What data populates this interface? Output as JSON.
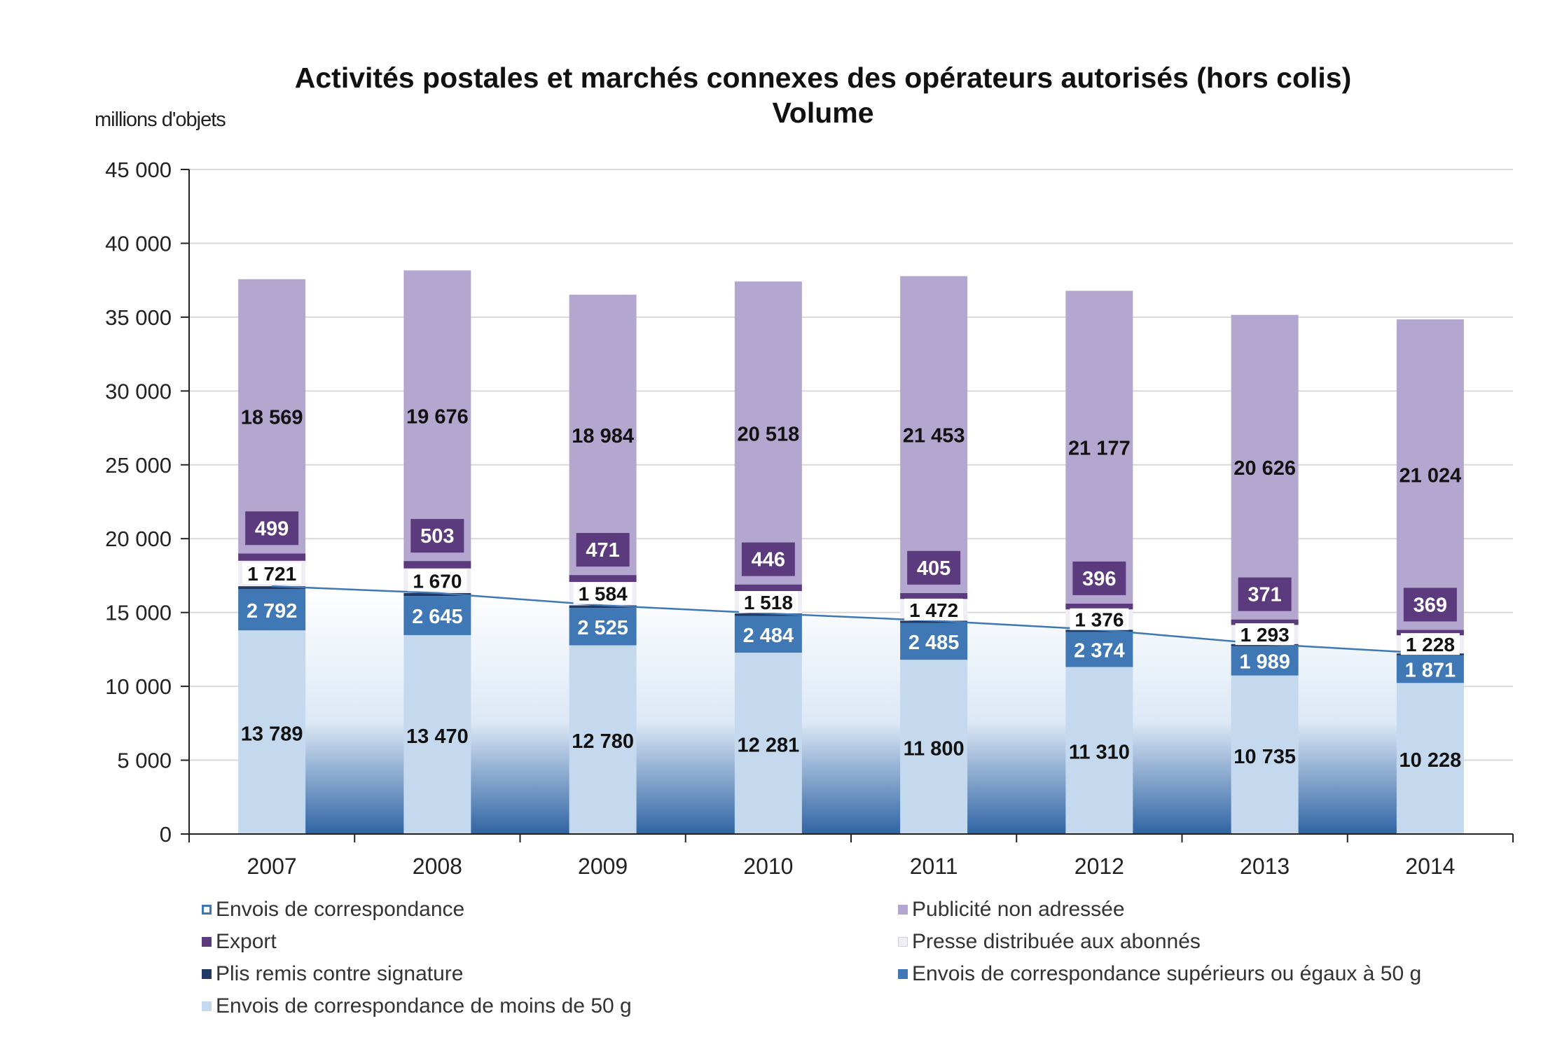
{
  "title": "Activités postales et marchés connexes des opérateurs autorisés (hors colis)",
  "subtitle": "Volume",
  "unit_label": "millions d'objets",
  "colors": {
    "lt50": "#c5d9ee",
    "gt50": "#3f78b5",
    "plis": "#1f3864",
    "presse": "#eeeef4",
    "export": "#5c3a7e",
    "pub": "#b3a7d0",
    "total_line": "#3f78b5",
    "grid": "#d9d9d9",
    "axis": "#222222"
  },
  "chart_data": {
    "type": "bar",
    "stacked": true,
    "title": "Activités postales et marchés connexes des opérateurs autorisés (hors colis)\nVolume",
    "ylabel": "millions d'objets",
    "ylim": [
      0,
      45000
    ],
    "yticks": [
      0,
      5000,
      10000,
      15000,
      20000,
      25000,
      30000,
      35000,
      40000,
      45000
    ],
    "ytick_labels": [
      "0",
      "5 000",
      "10 000",
      "15 000",
      "20 000",
      "25 000",
      "30 000",
      "35 000",
      "40 000",
      "45 000"
    ],
    "categories": [
      "2007",
      "2008",
      "2009",
      "2010",
      "2011",
      "2012",
      "2013",
      "2014"
    ],
    "series": [
      {
        "name": "Envois de correspondance de moins de 50 g",
        "color_key": "lt50",
        "values": [
          13789,
          13470,
          12780,
          12281,
          11800,
          11310,
          10735,
          10228
        ],
        "labels": [
          "13 789",
          "13 470",
          "12 780",
          "12 281",
          "11 800",
          "11 310",
          "10 735",
          "10 228"
        ]
      },
      {
        "name": "Envois de correspondance supérieurs ou égaux à 50 g",
        "color_key": "gt50",
        "values": [
          2792,
          2645,
          2525,
          2484,
          2485,
          2374,
          1989,
          1871
        ],
        "labels": [
          "2 792",
          "2 645",
          "2 525",
          "2 484",
          "2 485",
          "2 374",
          "1 989",
          "1 871"
        ]
      },
      {
        "name": "Plis remis contre signature",
        "color_key": "plis",
        "values": [
          200,
          200,
          180,
          170,
          160,
          150,
          140,
          130
        ],
        "labels": null
      },
      {
        "name": "Presse distribuée aux abonnés",
        "color_key": "presse",
        "values": [
          1721,
          1670,
          1584,
          1518,
          1472,
          1376,
          1293,
          1228
        ],
        "labels": [
          "1 721",
          "1 670",
          "1 584",
          "1 518",
          "1 472",
          "1 376",
          "1 293",
          "1 228"
        ]
      },
      {
        "name": "Export",
        "color_key": "export",
        "values": [
          499,
          503,
          471,
          446,
          405,
          396,
          371,
          369
        ],
        "labels": [
          "499",
          "503",
          "471",
          "446",
          "405",
          "396",
          "371",
          "369"
        ]
      },
      {
        "name": "Publicité non adressée",
        "color_key": "pub",
        "values": [
          18569,
          19676,
          18984,
          20518,
          21453,
          21177,
          20626,
          21024
        ],
        "labels": [
          "18 569",
          "19 676",
          "18 984",
          "20 518",
          "21 453",
          "21 177",
          "20 626",
          "21 024"
        ]
      }
    ],
    "line_series": {
      "name": "Envois de correspondance",
      "values": [
        16781,
        16315,
        15485,
        14935,
        14445,
        13834,
        12864,
        12229
      ]
    },
    "legend": [
      {
        "name": "Envois de correspondance",
        "color_key": "total_line",
        "style": "outline"
      },
      {
        "name": "Publicité non adressée",
        "color_key": "pub",
        "style": "fill"
      },
      {
        "name": "Export",
        "color_key": "export",
        "style": "fill"
      },
      {
        "name": "Presse distribuée aux abonnés",
        "color_key": "presse",
        "style": "fill"
      },
      {
        "name": "Plis remis contre signature",
        "color_key": "plis",
        "style": "fill"
      },
      {
        "name": "Envois de correspondance supérieurs ou égaux à 50 g",
        "color_key": "gt50",
        "style": "fill"
      },
      {
        "name": "Envois de correspondance de moins de 50 g",
        "color_key": "lt50",
        "style": "fill"
      }
    ],
    "legend_position": "bottom"
  }
}
